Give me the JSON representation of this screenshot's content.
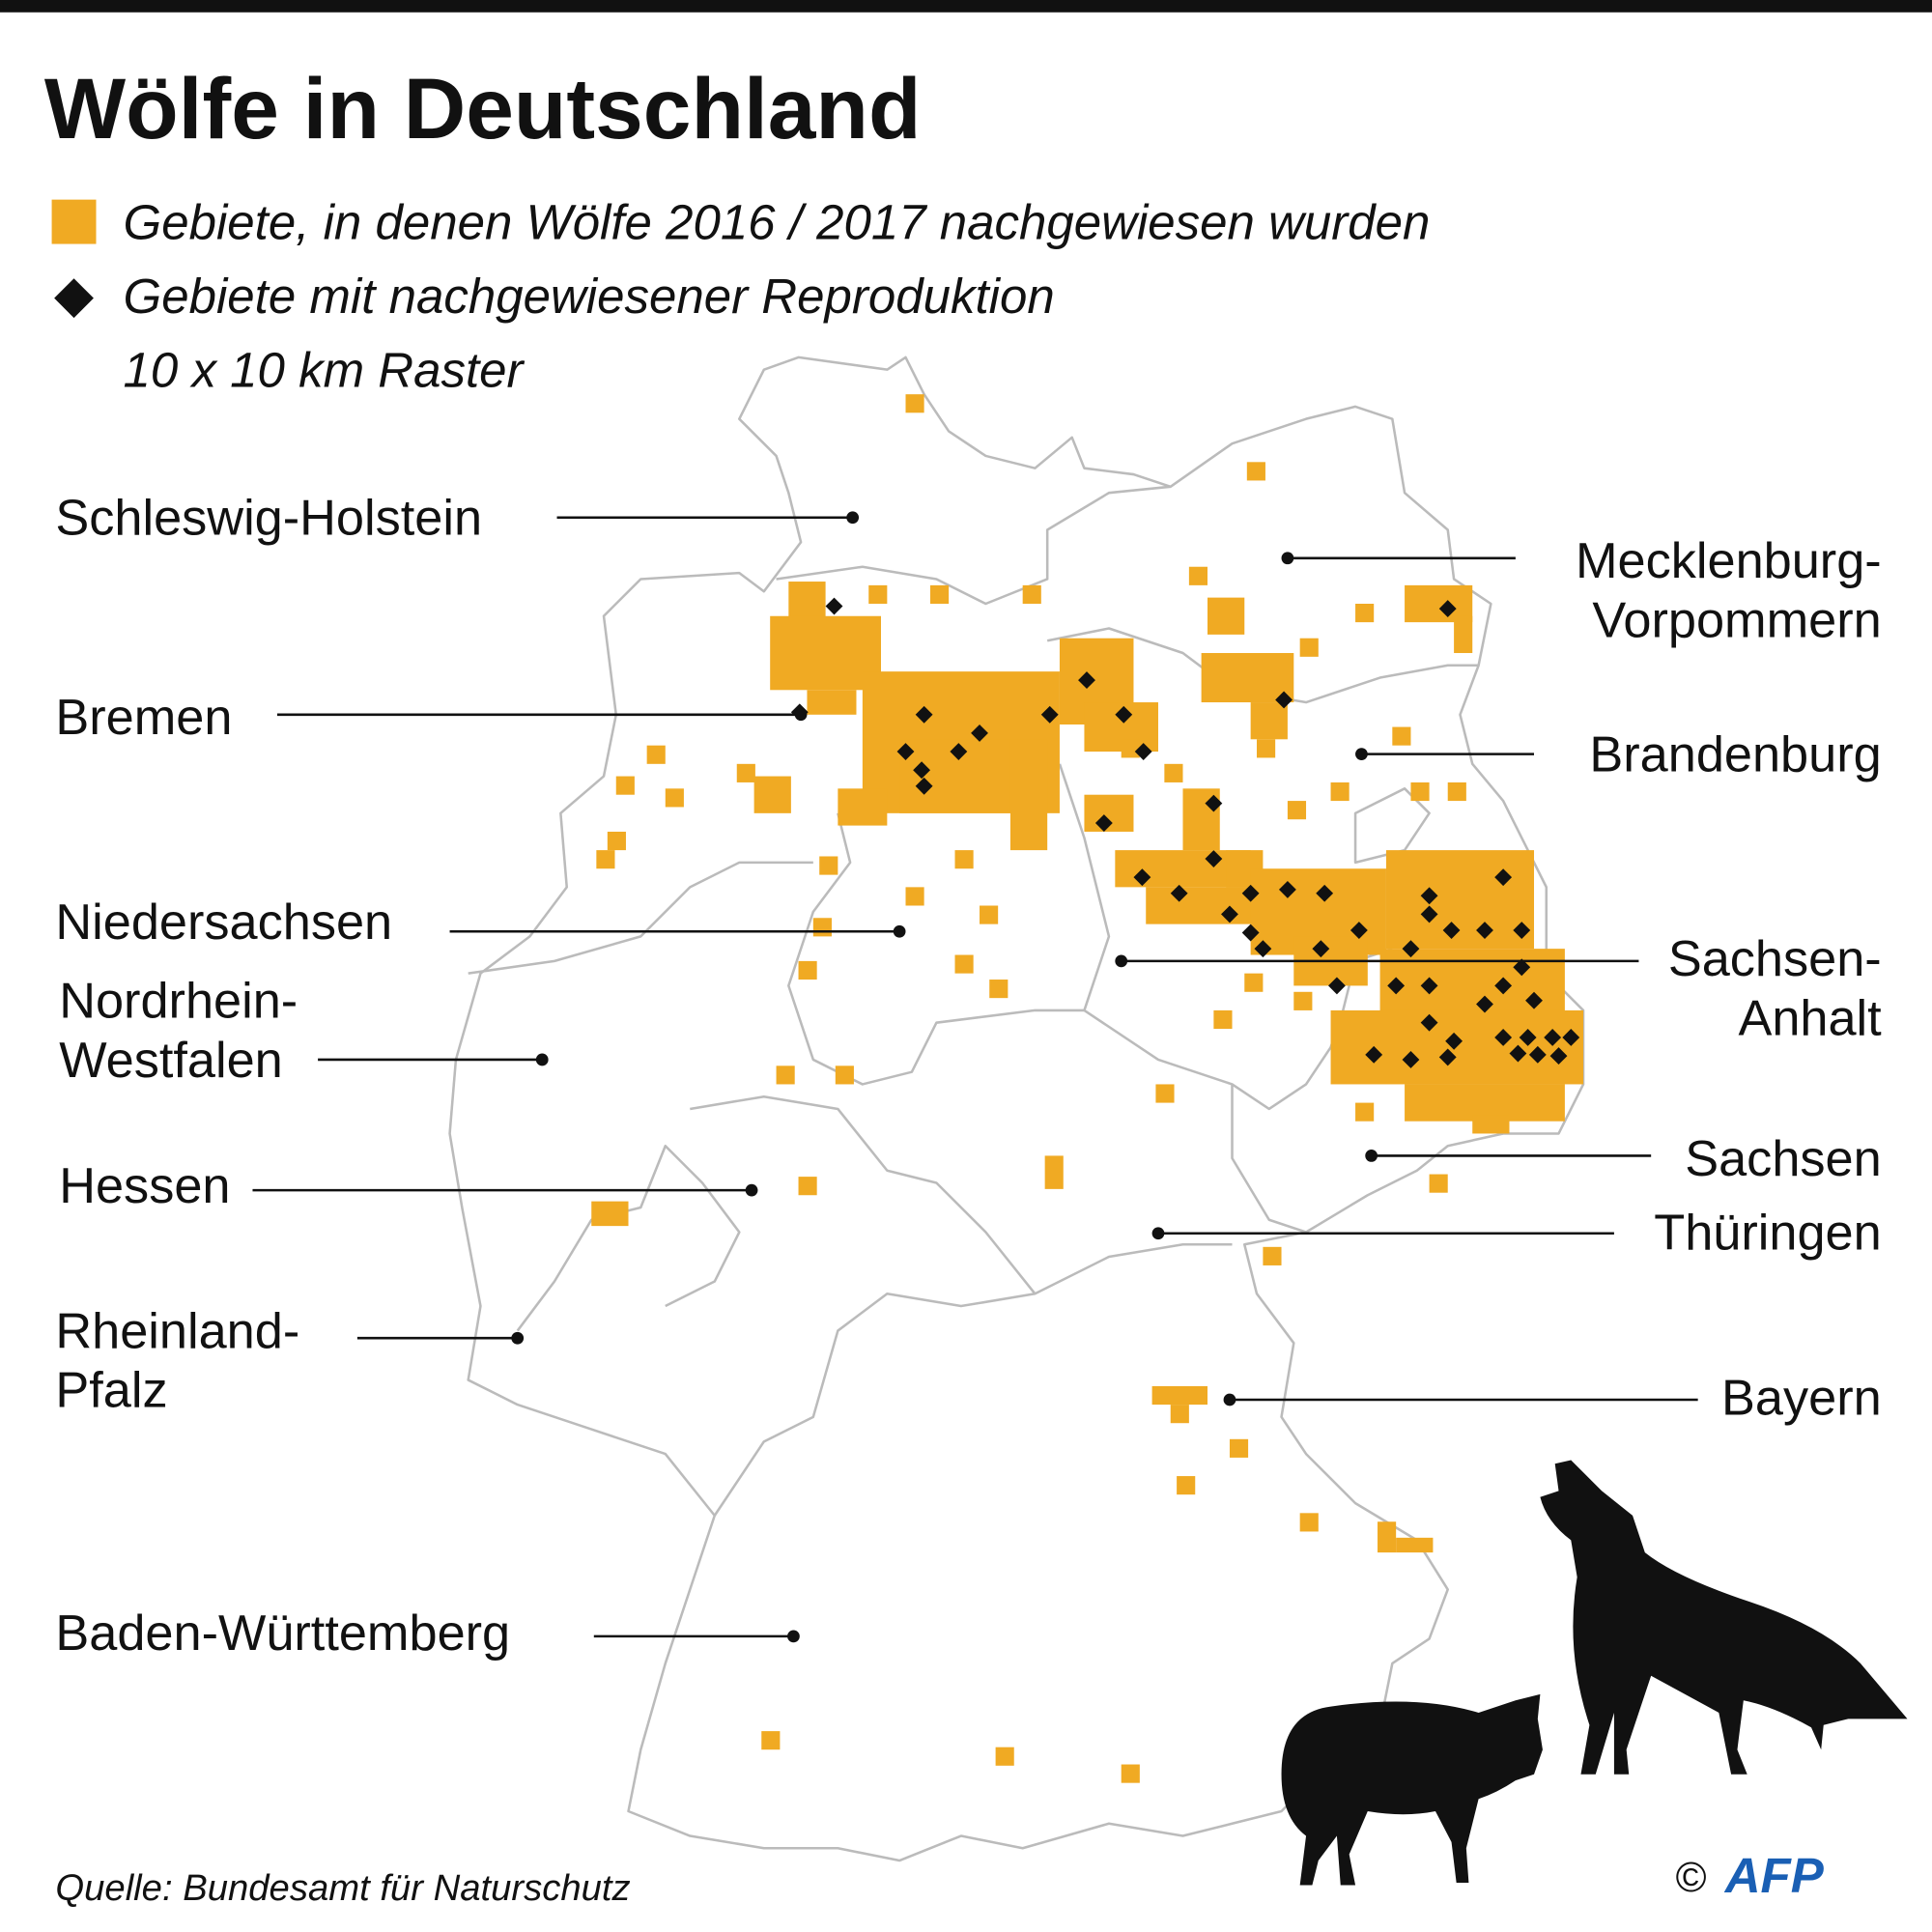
{
  "header": {
    "title": "Wölfe in Deutschland"
  },
  "legend": [
    {
      "label": "Gebiete, in denen Wölfe 2016 / 2017 nachgewiesen wurden"
    },
    {
      "label": "Gebiete mit nachgewiesener Reproduktion"
    }
  ],
  "raster_note": "10 x 10 km Raster",
  "states": [
    {
      "lines": [
        "Schleswig-Holstein"
      ]
    },
    {
      "lines": [
        "Bremen"
      ]
    },
    {
      "lines": [
        "Niedersachsen"
      ]
    },
    {
      "lines": [
        "Nordrhein-",
        "Westfalen"
      ]
    },
    {
      "lines": [
        "Hessen"
      ]
    },
    {
      "lines": [
        "Rheinland-",
        "Pfalz"
      ]
    },
    {
      "lines": [
        "Baden-Württemberg"
      ]
    },
    {
      "lines": [
        "Mecklenburg-",
        "Vorpommern"
      ]
    },
    {
      "lines": [
        "Brandenburg"
      ]
    },
    {
      "lines": [
        "Sachsen-",
        "Anhalt"
      ]
    },
    {
      "lines": [
        "Sachsen"
      ]
    },
    {
      "lines": [
        "Thüringen"
      ]
    },
    {
      "lines": [
        "Bayern"
      ]
    }
  ],
  "source": "Quelle: Bundesamt für Naturschutz",
  "credit": {
    "symbol": "©",
    "logo": "AFP"
  }
}
